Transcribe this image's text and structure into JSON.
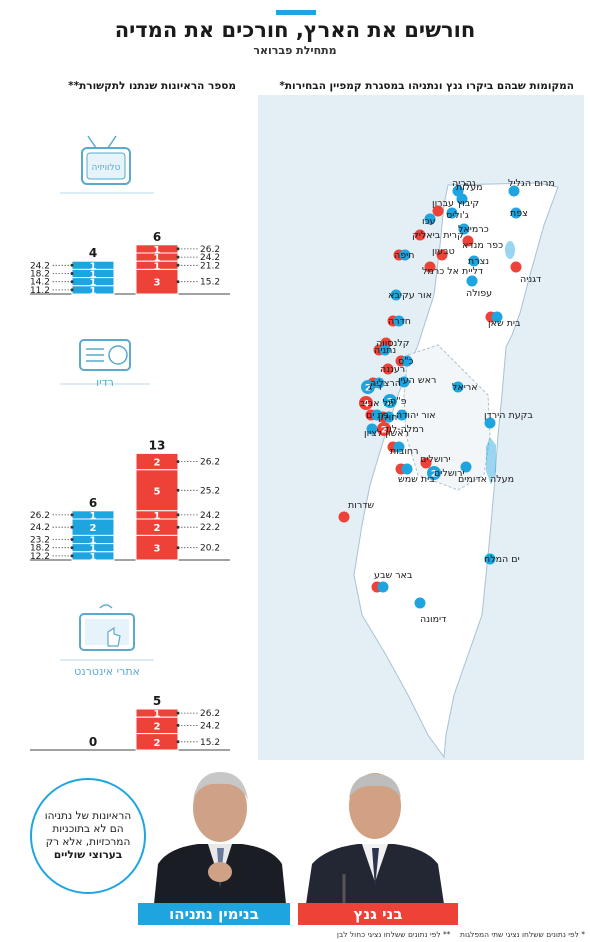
{
  "header": {
    "title": "חורשים את הארץ, חורכים את המדיה",
    "subtitle": "מתחילת פברואר"
  },
  "map_panel": {
    "title": "המקומות שבהם ביקרו גנץ ונתניהו במסגרת קמפיין הבחירות*",
    "places": [
      {
        "name": "מרום הגליל",
        "who": "gantz"
      },
      {
        "name": "צפת",
        "who": "gantz"
      },
      {
        "name": "נהריה",
        "who": "gantz"
      },
      {
        "name": "מעלות",
        "who": "gantz"
      },
      {
        "name": "קיבוץ עברון",
        "who": "netanyahu"
      },
      {
        "name": "ג'וליס",
        "who": "gantz"
      },
      {
        "name": "עכו",
        "who": "gantz"
      },
      {
        "name": "כרמיאל",
        "who": "gantz"
      },
      {
        "name": "קרית ביאליק",
        "who": "netanyahu"
      },
      {
        "name": "כפר מנדא",
        "who": "netanyahu"
      },
      {
        "name": "טבעון",
        "who": "netanyahu"
      },
      {
        "name": "חיפה",
        "who": "both"
      },
      {
        "name": "דליית אל כרמל",
        "who": "netanyahu"
      },
      {
        "name": "נצרת",
        "who": "gantz"
      },
      {
        "name": "דגניה",
        "who": "netanyahu"
      },
      {
        "name": "עפולה",
        "who": "gantz"
      },
      {
        "name": "אור עקיבא",
        "who": "gantz"
      },
      {
        "name": "בית שאן",
        "who": "both"
      },
      {
        "name": "חדרה",
        "who": "both"
      },
      {
        "name": "קלנסווה",
        "who": "netanyahu"
      },
      {
        "name": "נתניה",
        "who": "both"
      },
      {
        "name": "כ\"ס",
        "who": "both"
      },
      {
        "name": "רעננה",
        "who": "netanyahu"
      },
      {
        "name": "הרצליה",
        "who": "both"
      },
      {
        "name": "ראש העין",
        "who": "gantz"
      },
      {
        "name": "ר\"ג",
        "who": "gantz",
        "count": 2
      },
      {
        "name": "אריאל",
        "who": "gantz"
      },
      {
        "name": "פ\"ת",
        "who": "gantz",
        "count": 2
      },
      {
        "name": "תל אביב",
        "who": "netanyahu",
        "count": 4
      },
      {
        "name": "בקעת הירדן",
        "who": "gantz"
      },
      {
        "name": "אור יהודה",
        "who": "gantz"
      },
      {
        "name": "חולון",
        "who": "both"
      },
      {
        "name": "בת ים",
        "who": "both"
      },
      {
        "name": "ראשון לציון",
        "who": "gantz"
      },
      {
        "name": "רמלה-לוד",
        "who": "netanyahu",
        "count": 2
      },
      {
        "name": "רחובות",
        "who": "both"
      },
      {
        "name": "ירושלים",
        "who": "netanyahu"
      },
      {
        "name": "ירושלים",
        "who": "gantz",
        "count": 2
      },
      {
        "name": "מעלה אדומים",
        "who": "gantz"
      },
      {
        "name": "בית שמש",
        "who": "both"
      },
      {
        "name": "שדרות",
        "who": "netanyahu"
      },
      {
        "name": "ים המלח",
        "who": "gantz"
      },
      {
        "name": "באר שבע",
        "who": "both"
      },
      {
        "name": "דימונה",
        "who": "gantz"
      }
    ]
  },
  "media_panel": {
    "title": "מספר הראיונות שנתנו לתקשורת**"
  },
  "chart_data": [
    {
      "type": "bar",
      "media": "טלוויזיה",
      "categories": [
        "בני גנץ",
        "בנימין נתניהו"
      ],
      "gantz": {
        "total": 6,
        "segments": [
          {
            "date": "26.2",
            "value": 1
          },
          {
            "date": "24.2",
            "value": 1
          },
          {
            "date": "21.2",
            "value": 1
          },
          {
            "date": "15.2",
            "value": 3
          }
        ]
      },
      "netanyahu": {
        "total": 4,
        "segments": [
          {
            "date": "24.2",
            "value": 1
          },
          {
            "date": "18.2",
            "value": 1
          },
          {
            "date": "14.2",
            "value": 1
          },
          {
            "date": "11.2",
            "value": 1
          }
        ]
      }
    },
    {
      "type": "bar",
      "media": "רדיו",
      "categories": [
        "בני גנץ",
        "בנימין נתניהו"
      ],
      "gantz": {
        "total": 13,
        "segments": [
          {
            "date": "26.2",
            "value": 2
          },
          {
            "date": "25.2",
            "value": 5
          },
          {
            "date": "24.2",
            "value": 1
          },
          {
            "date": "22.2",
            "value": 2
          },
          {
            "date": "20.2",
            "value": 3
          }
        ]
      },
      "netanyahu": {
        "total": 6,
        "segments": [
          {
            "date": "26.2",
            "value": 1
          },
          {
            "date": "24.2",
            "value": 2
          },
          {
            "date": "23.2",
            "value": 1
          },
          {
            "date": "18.2",
            "value": 1
          },
          {
            "date": "12.2",
            "value": 1
          }
        ]
      }
    },
    {
      "type": "bar",
      "media": "אתרי אינטרנט",
      "categories": [
        "בני גנץ",
        "בנימין נתניהו"
      ],
      "gantz": {
        "total": 5,
        "segments": [
          {
            "date": "26.2",
            "value": 1
          },
          {
            "date": "24.2",
            "value": 2
          },
          {
            "date": "15.2",
            "value": 2
          }
        ]
      },
      "netanyahu": {
        "total": 0,
        "segments": []
      }
    }
  ],
  "note": {
    "line1": "הראיונות של נתניהו הם לא בתוכניות המרכזיות, אלא רק",
    "bold": "בערוצי שוליים"
  },
  "candidates": {
    "gantz": {
      "name": "בני גנץ",
      "color": "#ee4239"
    },
    "netanyahu": {
      "name": "בנימין נתניהו",
      "color": "#1ea5e0"
    }
  },
  "footnotes": {
    "star1": "* לפי נתונים ששלחו נציגי שתי המפלגות",
    "star2": "** לפי נתונים ששלחו נציגי כחול לבן"
  },
  "icons": [
    "tv-icon",
    "radio-icon",
    "tablet-icon"
  ]
}
